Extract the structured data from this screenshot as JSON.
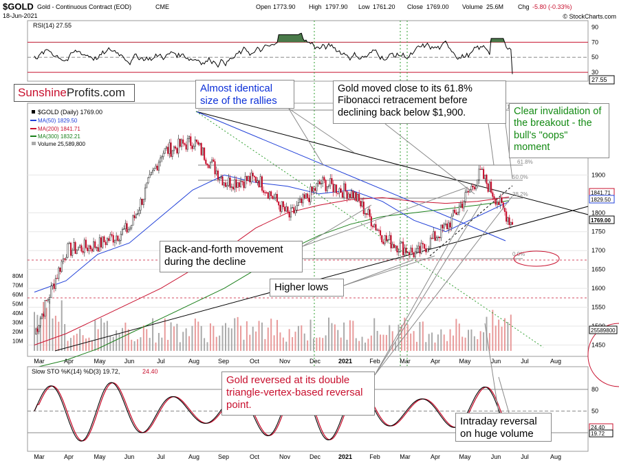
{
  "header": {
    "symbol": "$GOLD",
    "description": "Gold - Continuous Contract (EOD)",
    "exchange": "CME",
    "date": "18-Jun-2021",
    "open_label": "Open",
    "open": "1773.90",
    "high_label": "High",
    "high": "1797.90",
    "low_label": "Low",
    "low": "1761.20",
    "close_label": "Close",
    "close": "1769.00",
    "volume_label": "Volume",
    "volume": "25.6M",
    "chg_label": "Chg",
    "chg": "-5.80 (-0.33%)",
    "credit": "© StockCharts.com"
  },
  "brand": {
    "part1": "Sunshine",
    "part2": "Profits.com"
  },
  "rsi": {
    "label": "RSI(14) 27.55",
    "value_tag": "27.55",
    "ticks": [
      "90",
      "70",
      "50",
      "30"
    ]
  },
  "legend": {
    "title": "$GOLD (Daily) 1769.00",
    "ma50": "MA(50) 1829.50",
    "ma200": "MA(200) 1841.71",
    "ma300": "MA(300) 1832.21",
    "volume": "Volume 25,589,800"
  },
  "price_axis": {
    "ticks": [
      "1900",
      "1800",
      "1750",
      "1700",
      "1650",
      "1600",
      "1550",
      "1500",
      "1450"
    ],
    "tags": [
      "1841.71",
      "1829.50",
      "1769.00"
    ],
    "volume_tag": "25589800"
  },
  "volume_axis": {
    "ticks": [
      "80M",
      "70M",
      "60M",
      "50M",
      "40M",
      "30M",
      "20M",
      "10M"
    ]
  },
  "months": [
    "Mar",
    "Apr",
    "May",
    "Jun",
    "Jul",
    "Aug",
    "Sep",
    "Oct",
    "Nov",
    "Dec",
    "2021",
    "Feb",
    "Mar",
    "Apr",
    "May",
    "Jun",
    "Jul",
    "Aug"
  ],
  "fib": {
    "l100": "100",
    "l618": "61.8%",
    "l500": "50.0%",
    "l382": "38.2%",
    "l0": "0.0%"
  },
  "stoch": {
    "label": "Slow STO %K(14) %D(3) 19.72,",
    "d_value": "24.40",
    "ticks": [
      "80",
      "50",
      "20"
    ],
    "tag1": "24.40",
    "tag2": "19.72"
  },
  "annotations": {
    "rallies": "Almost identical size of the rallies",
    "fibonacci": "Gold moved close to its 61.8% Fibonacci retracement before declining back below $1,900.",
    "invalidation": "Clear invalidation of the breakout - the bull's \"oops\" moment",
    "back_forth": "Back-and-forth movement during the decline",
    "higher_lows": "Higher lows",
    "reversed": "Gold reversed at its double triangle-vertex-based reversal point.",
    "intraday": "Intraday reversal on huge volume"
  },
  "colors": {
    "ma50": "#1f3fd8",
    "ma200": "#c8102e",
    "ma300": "#1a7f1a",
    "up": "#222222",
    "down": "#c8102e",
    "rsi_fill": "#4a7a4a",
    "annotation_blue": "#0b2fd8",
    "annotation_green": "#138a13",
    "annotation_red": "#c8102e",
    "brand_red": "#c8102e"
  },
  "chart_data": {
    "type": "candlestick",
    "title": "$GOLD Gold - Continuous Contract (EOD)",
    "period": "Mar 2020 - Jun 2021",
    "x": [
      "2020-03",
      "2020-04",
      "2020-05",
      "2020-06",
      "2020-07",
      "2020-08",
      "2020-09",
      "2020-10",
      "2020-11",
      "2020-12",
      "2021-01",
      "2021-02",
      "2021-03",
      "2021-04",
      "2021-05",
      "2021-06"
    ],
    "series": [
      {
        "name": "$GOLD",
        "values": [
          1480,
          1700,
          1715,
          1760,
          1960,
          1990,
          1880,
          1890,
          1790,
          1880,
          1850,
          1730,
          1690,
          1770,
          1905,
          1769
        ]
      },
      {
        "name": "MA(50)",
        "values": [
          1590,
          1620,
          1690,
          1720,
          1790,
          1860,
          1900,
          1880,
          1870,
          1850,
          1860,
          1830,
          1780,
          1750,
          1790,
          1829.5
        ]
      },
      {
        "name": "MA(200)",
        "values": [
          1450,
          1480,
          1520,
          1560,
          1600,
          1650,
          1700,
          1760,
          1800,
          1820,
          1835,
          1840,
          1830,
          1825,
          1830,
          1841.71
        ]
      },
      {
        "name": "MA(300)",
        "values": [
          1390,
          1410,
          1440,
          1480,
          1520,
          1560,
          1600,
          1650,
          1700,
          1740,
          1770,
          1790,
          1800,
          1810,
          1820,
          1832.21
        ]
      }
    ],
    "ylim": [
      1420,
      2090
    ],
    "rsi_last": 27.55,
    "stoch_k_last": 19.72,
    "stoch_d_last": 24.4,
    "volume_last": 25589800
  }
}
